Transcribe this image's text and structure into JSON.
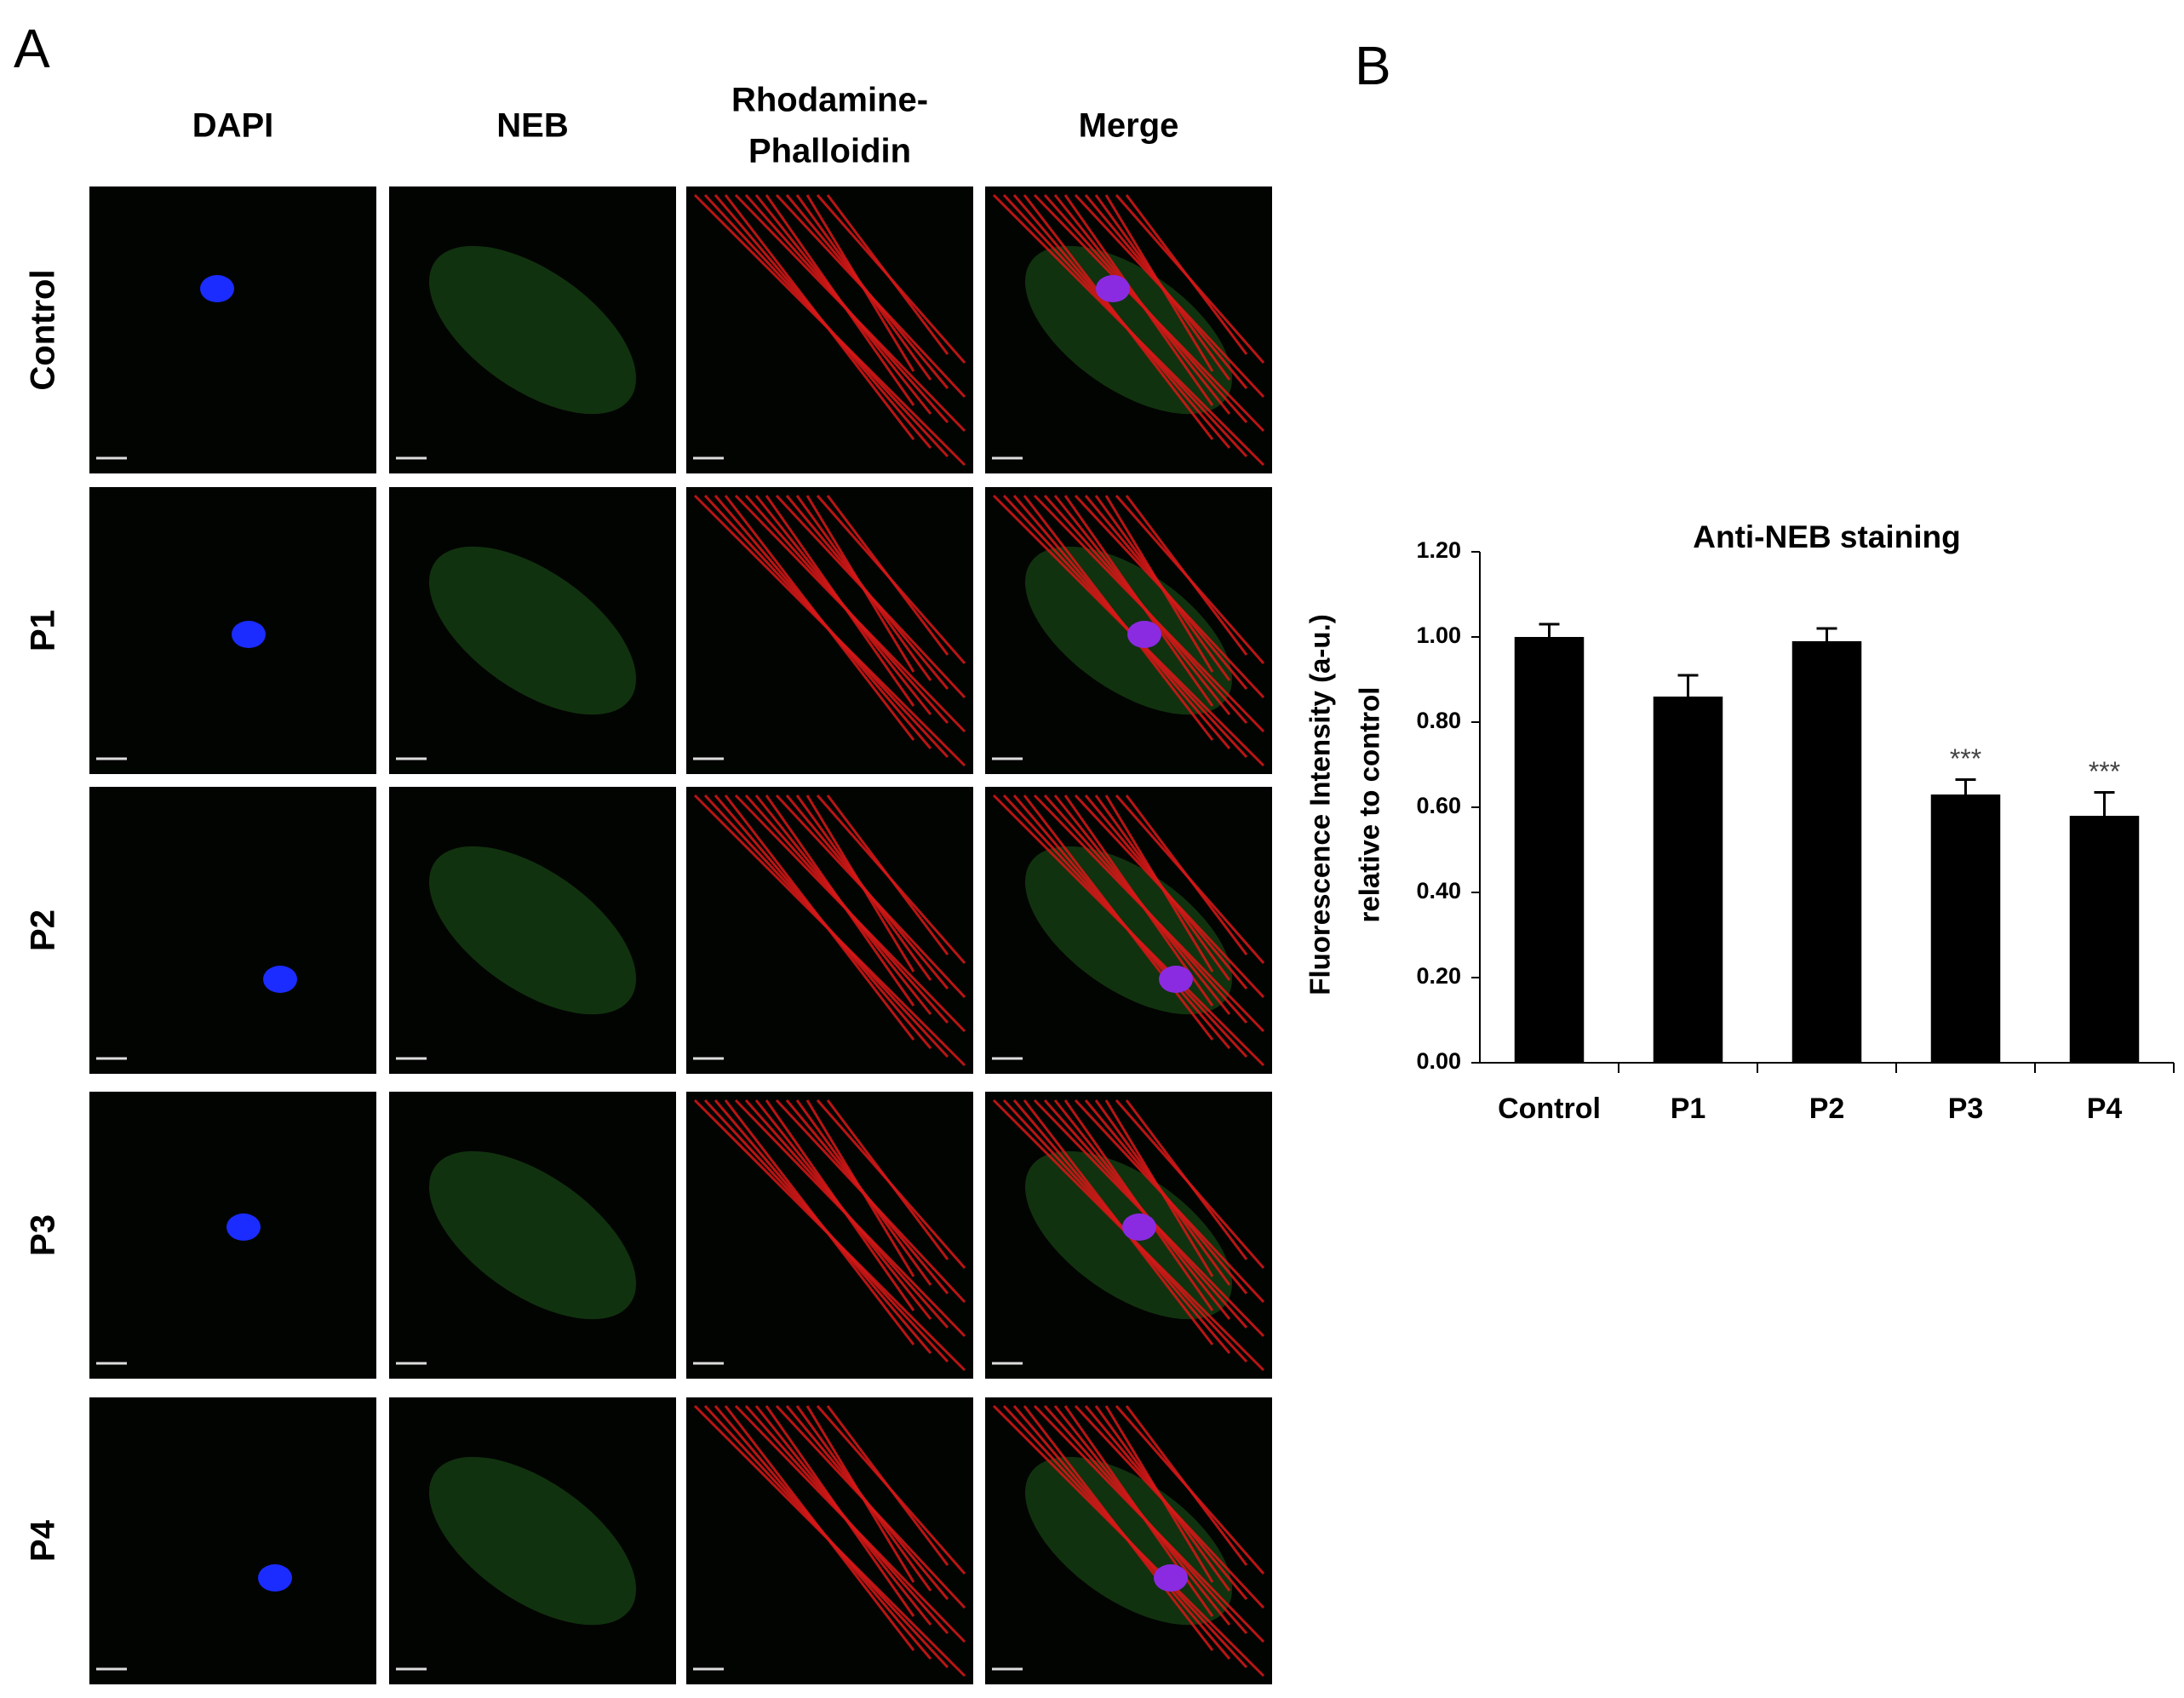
{
  "panel_a": {
    "label": "A",
    "columns": [
      [
        "DAPI"
      ],
      [
        "NEB"
      ],
      [
        "Rhodamine-",
        "Phalloidin"
      ],
      [
        "Merge"
      ]
    ],
    "rows": [
      "Control",
      "P1",
      "P2",
      "P3",
      "P4"
    ]
  },
  "panel_b": {
    "label": "B"
  },
  "chart_data": {
    "type": "bar",
    "title": "Anti-NEB staining",
    "ylabel": [
      "Fluorescence Intensity (a-u.)",
      "relative to control"
    ],
    "categories": [
      "Control",
      "P1",
      "P2",
      "P3",
      "P4"
    ],
    "values": [
      1.0,
      0.86,
      0.99,
      0.63,
      0.58
    ],
    "errors": [
      0.03,
      0.05,
      0.03,
      0.035,
      0.055
    ],
    "significance": [
      null,
      null,
      null,
      "***",
      "***"
    ],
    "color": "#000000",
    "ylim": [
      0,
      1.2
    ],
    "yticks": [
      {
        "value": 0,
        "label": "0.00"
      },
      {
        "value": 0.2,
        "label": "0.20"
      },
      {
        "value": 0.4,
        "label": "0.40"
      },
      {
        "value": 0.6,
        "label": "0.60"
      },
      {
        "value": 0.8,
        "label": "0.80"
      },
      {
        "value": 1.0,
        "label": "1.00"
      },
      {
        "value": 1.2,
        "label": "1.20"
      }
    ]
  }
}
